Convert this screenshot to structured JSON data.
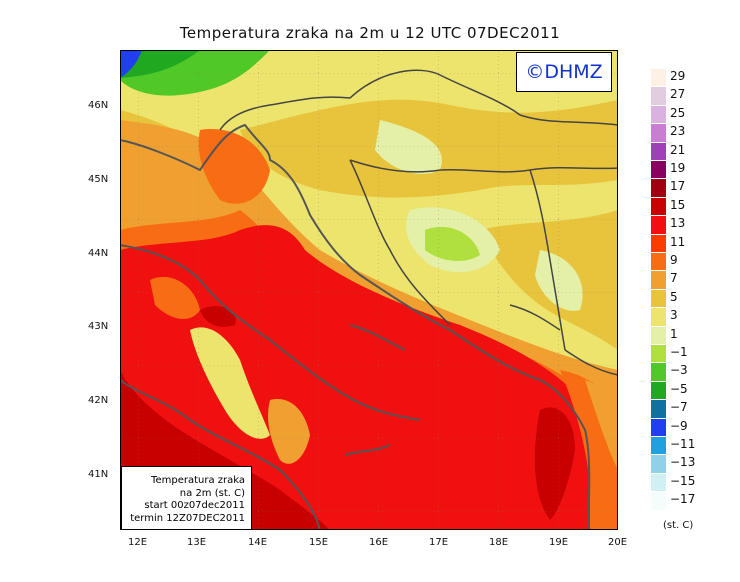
{
  "title": "Temperatura zraka na 2m u 12 UTC 07DEC2011",
  "logo_text": "©DHMZ",
  "info_box": {
    "line1": "Temperatura zraka",
    "line2": "na 2m (st. C)",
    "line3": "start 00z07dec2011",
    "line4": "termin 12Z07DEC2011"
  },
  "lat_labels": [
    "46N",
    "45N",
    "44N",
    "43N",
    "42N",
    "41N"
  ],
  "lon_labels": [
    "12E",
    "13E",
    "14E",
    "15E",
    "16E",
    "17E",
    "18E",
    "19E",
    "20E"
  ],
  "legend": {
    "unit": "(st. C)",
    "items": [
      {
        "label": "29",
        "color": "#fdf0e4"
      },
      {
        "label": "27",
        "color": "#e2cde0"
      },
      {
        "label": "25",
        "color": "#dab1df"
      },
      {
        "label": "23",
        "color": "#c87fd2"
      },
      {
        "label": "21",
        "color": "#a040b8"
      },
      {
        "label": "19",
        "color": "#8a0060"
      },
      {
        "label": "17",
        "color": "#a00010"
      },
      {
        "label": "15",
        "color": "#c80000"
      },
      {
        "label": "13",
        "color": "#f01010"
      },
      {
        "label": "11",
        "color": "#fa3c00"
      },
      {
        "label": "9",
        "color": "#f86c14"
      },
      {
        "label": "7",
        "color": "#f0a030"
      },
      {
        "label": "5",
        "color": "#e8c43c"
      },
      {
        "label": "3",
        "color": "#ece46c"
      },
      {
        "label": "1",
        "color": "#e4f0a8"
      },
      {
        "label": "−1",
        "color": "#b0e040"
      },
      {
        "label": "−3",
        "color": "#50c828"
      },
      {
        "label": "−5",
        "color": "#20a820"
      },
      {
        "label": "−7",
        "color": "#1070a0"
      },
      {
        "label": "−9",
        "color": "#2040f0"
      },
      {
        "label": "−11",
        "color": "#20a0e0"
      },
      {
        "label": "−13",
        "color": "#90d0e8"
      },
      {
        "label": "−15",
        "color": "#d0f0f4"
      },
      {
        "label": "−17",
        "color": "#f4fcfc"
      }
    ]
  }
}
